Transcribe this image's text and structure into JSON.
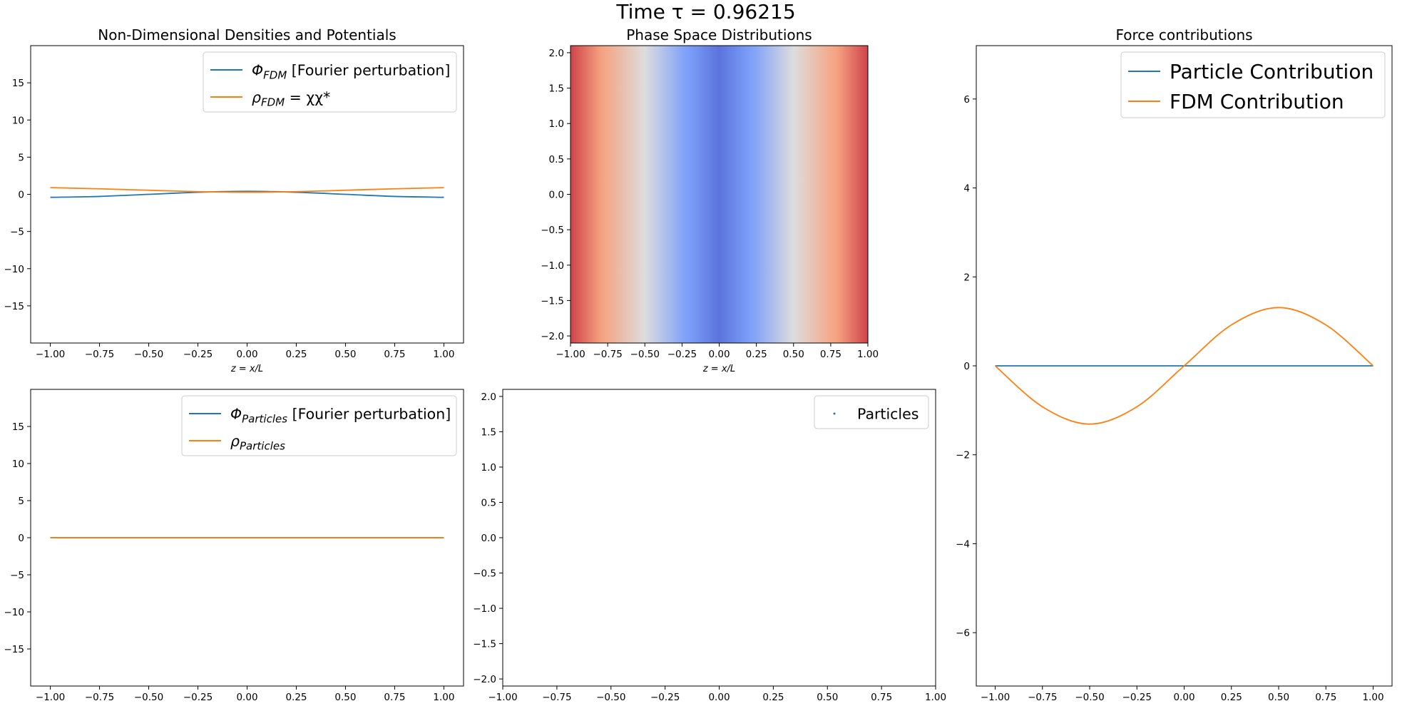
{
  "figure": {
    "suptitle": "Time τ = 0.96215"
  },
  "chart_data": [
    {
      "id": "densities_fdm",
      "type": "line",
      "title": "Non-Dimensional Densities and Potentials",
      "xlabel": "z = x/L",
      "xlim": [
        -1.1,
        1.1
      ],
      "ylim": [
        -20,
        20
      ],
      "xticks": [
        -1.0,
        -0.75,
        -0.5,
        -0.25,
        0.0,
        0.25,
        0.5,
        0.75,
        1.0
      ],
      "xtick_labels": [
        "−1.00",
        "−0.75",
        "−0.50",
        "−0.25",
        "0.00",
        "0.25",
        "0.50",
        "0.75",
        "1.00"
      ],
      "yticks": [
        -15,
        -10,
        -5,
        0,
        5,
        10,
        15
      ],
      "ytick_labels": [
        "−15",
        "−10",
        "−5",
        "0",
        "5",
        "10",
        "15"
      ],
      "legend_position": "top-right",
      "series": [
        {
          "name": "Φ_FDM [Fourier perturbation]",
          "label_main": "Φ",
          "label_sub": "FDM",
          "label_rest": " [Fourier perturbation]",
          "color": "#1f77b4",
          "x": [
            -1.0,
            -0.75,
            -0.5,
            -0.25,
            0.0,
            0.25,
            0.5,
            0.75,
            1.0
          ],
          "y": [
            -0.4,
            -0.28,
            0.0,
            0.28,
            0.4,
            0.28,
            0.0,
            -0.28,
            -0.4
          ]
        },
        {
          "name": "ρ_FDM = χχ*",
          "label_main": "ρ",
          "label_sub": "FDM",
          "label_rest": " = χχ*",
          "color": "#ff7f0e",
          "x": [
            -1.0,
            -0.75,
            -0.5,
            -0.25,
            0.0,
            0.25,
            0.5,
            0.75,
            1.0
          ],
          "y": [
            0.9,
            0.74,
            0.55,
            0.36,
            0.28,
            0.36,
            0.55,
            0.74,
            0.9
          ]
        }
      ]
    },
    {
      "id": "phase_space_fdm",
      "type": "heatmap",
      "title": "Phase Space Distributions",
      "xlabel": "z = x/L",
      "xlim": [
        -1.0,
        1.0
      ],
      "ylim": [
        -2.1,
        2.1
      ],
      "xticks": [
        -1.0,
        -0.75,
        -0.5,
        -0.25,
        0.0,
        0.25,
        0.5,
        0.75,
        1.0
      ],
      "xtick_labels": [
        "−1.00",
        "−0.75",
        "−0.50",
        "−0.25",
        "0.00",
        "0.25",
        "0.50",
        "0.75",
        "1.00"
      ],
      "yticks": [
        -2.0,
        -1.5,
        -1.0,
        -0.5,
        0.0,
        0.5,
        1.0,
        1.5,
        2.0
      ],
      "ytick_labels": [
        "−2.0",
        "−1.5",
        "−1.0",
        "−0.5",
        "0.0",
        "0.5",
        "1.0",
        "1.5",
        "2.0"
      ],
      "colormap": "coolwarm",
      "intensity_x": [
        -1.0,
        -0.75,
        -0.5,
        -0.25,
        0.0,
        0.25,
        0.5,
        0.75,
        1.0
      ],
      "intensity": [
        0.9,
        0.72,
        0.5,
        0.28,
        0.12,
        0.28,
        0.5,
        0.72,
        0.9
      ]
    },
    {
      "id": "force_contributions",
      "type": "line",
      "title": "Force contributions",
      "xlim": [
        -1.1,
        1.1
      ],
      "ylim": [
        -7.2,
        7.2
      ],
      "xticks": [
        -1.0,
        -0.75,
        -0.5,
        -0.25,
        0.0,
        0.25,
        0.5,
        0.75,
        1.0
      ],
      "xtick_labels": [
        "−1.00",
        "−0.75",
        "−0.50",
        "−0.25",
        "0.00",
        "0.25",
        "0.50",
        "0.75",
        "1.00"
      ],
      "yticks": [
        -6,
        -4,
        -2,
        0,
        2,
        4,
        6
      ],
      "ytick_labels": [
        "−6",
        "−4",
        "−2",
        "0",
        "2",
        "4",
        "6"
      ],
      "legend_position": "top-right",
      "series": [
        {
          "name": "Particle Contribution",
          "color": "#1f77b4",
          "x": [
            -1.0,
            1.0
          ],
          "y": [
            0,
            0
          ]
        },
        {
          "name": "FDM Contribution",
          "color": "#ff7f0e",
          "x": [
            -1.0,
            -0.75,
            -0.5,
            -0.25,
            0.0,
            0.25,
            0.5,
            0.75,
            1.0
          ],
          "y": [
            0.0,
            -0.92,
            -1.31,
            -0.92,
            0.0,
            0.92,
            1.31,
            0.92,
            0.0
          ]
        }
      ]
    },
    {
      "id": "densities_particles",
      "type": "line",
      "xlim": [
        -1.1,
        1.1
      ],
      "ylim": [
        -20,
        20
      ],
      "xticks": [
        -1.0,
        -0.75,
        -0.5,
        -0.25,
        0.0,
        0.25,
        0.5,
        0.75,
        1.0
      ],
      "xtick_labels": [
        "−1.00",
        "−0.75",
        "−0.50",
        "−0.25",
        "0.00",
        "0.25",
        "0.50",
        "0.75",
        "1.00"
      ],
      "yticks": [
        -15,
        -10,
        -5,
        0,
        5,
        10,
        15
      ],
      "ytick_labels": [
        "−15",
        "−10",
        "−5",
        "0",
        "5",
        "10",
        "15"
      ],
      "legend_position": "top-right",
      "series": [
        {
          "name": "Φ_Particles [Fourier perturbation]",
          "label_main": "Φ",
          "label_sub": "Particles",
          "label_rest": " [Fourier perturbation]",
          "color": "#1f77b4",
          "x": [
            -1.0,
            1.0
          ],
          "y": [
            0,
            0
          ]
        },
        {
          "name": "ρ_Particles",
          "label_main": "ρ",
          "label_sub": "Particles",
          "label_rest": "",
          "color": "#ff7f0e",
          "x": [
            -1.0,
            1.0
          ],
          "y": [
            0,
            0
          ]
        }
      ]
    },
    {
      "id": "phase_space_particles",
      "type": "scatter",
      "xlim": [
        -1.0,
        1.0
      ],
      "ylim": [
        -2.1,
        2.1
      ],
      "xticks": [
        -1.0,
        -0.75,
        -0.5,
        -0.25,
        0.0,
        0.25,
        0.5,
        0.75,
        1.0
      ],
      "xtick_labels": [
        "−1.00",
        "−0.75",
        "−0.50",
        "−0.25",
        "0.00",
        "0.25",
        "0.50",
        "0.75",
        "1.00"
      ],
      "yticks": [
        -2.0,
        -1.5,
        -1.0,
        -0.5,
        0.0,
        0.5,
        1.0,
        1.5,
        2.0
      ],
      "ytick_labels": [
        "−2.0",
        "−1.5",
        "−1.0",
        "−0.5",
        "0.0",
        "0.5",
        "1.0",
        "1.5",
        "2.0"
      ],
      "legend_position": "top-right",
      "series": [
        {
          "name": "Particles",
          "color": "#1f77b4",
          "x": [],
          "y": []
        }
      ]
    }
  ]
}
